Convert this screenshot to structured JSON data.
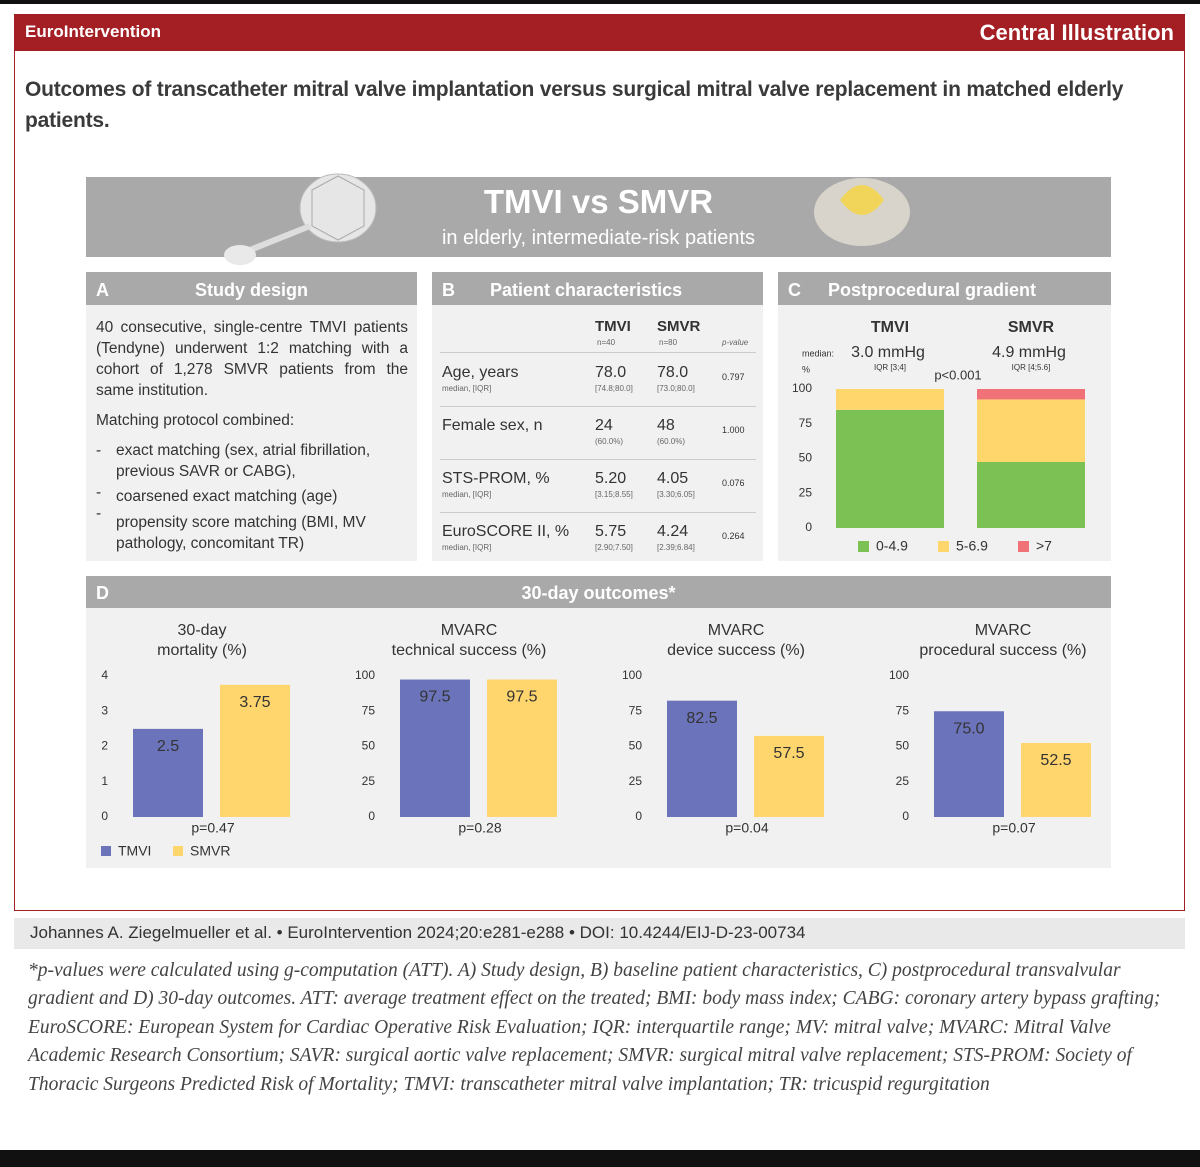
{
  "header": {
    "journal": "EuroIntervention",
    "label": "Central Illustration"
  },
  "title": "Outcomes of transcatheter mitral valve implantation versus surgical mitral valve replacement in matched elderly patients.",
  "banner": {
    "title": "TMVI vs SMVR",
    "subtitle": "in elderly, intermediate-risk patients"
  },
  "panel_a": {
    "letter": "A",
    "title": "Study design",
    "paragraph": "40 consecutive, single-centre TMVI patients (Tendyne) underwent 1:2 matching with a cohort of 1,278 SMVR patients from the same institution.",
    "matching_intro": "Matching protocol combined:",
    "matching_items": [
      "exact matching (sex, atrial fibrillation, previous SAVR or CABG),",
      "coarsened exact matching (age)",
      "propensity score matching (BMI, MV pathology, concomitant TR)"
    ]
  },
  "panel_b": {
    "letter": "B",
    "title": "Patient characteristics",
    "columns": [
      "TMVI",
      "SMVR"
    ],
    "column_n": [
      "n=40",
      "n=80"
    ],
    "p_header": "p-value",
    "rows": [
      {
        "label": "Age, years",
        "sublabel": "median, [IQR]",
        "tmvi": "78.0",
        "tmvi_detail": "[74.8;80.0]",
        "smvr": "78.0",
        "smvr_detail": "[73.0;80.0]",
        "p": "0.797"
      },
      {
        "label": "Female sex, n",
        "tmvi": "24",
        "tmvi_detail": "(60.0%)",
        "smvr": "48",
        "smvr_detail": "(60.0%)",
        "p": "1.000"
      },
      {
        "label": "STS-PROM, %",
        "sublabel": "median, [IQR]",
        "tmvi": "5.20",
        "tmvi_detail": "[3.15;8.55]",
        "smvr": "4.05",
        "smvr_detail": "[3.30;6.05]",
        "p": "0.076"
      },
      {
        "label": "EuroSCORE II, %",
        "sublabel": "median, [IQR]",
        "tmvi": "5.75",
        "tmvi_detail": "[2.90;7.50]",
        "smvr": "4.24",
        "smvr_detail": "[2.39;6.84]",
        "p": "0.264"
      }
    ]
  },
  "panel_c": {
    "letter": "C",
    "title": "Postprocedural gradient",
    "chart": {
      "type": "bar",
      "stacked": true,
      "categories": [
        "TMVI",
        "SMVR"
      ],
      "median_label": "median:",
      "medians": [
        "3.0 mmHg",
        "4.9 mmHg"
      ],
      "iqr": [
        "IQR [3;4]",
        "IQR [4;5.6]"
      ],
      "y_unit": "%",
      "p_value": "p<0.001",
      "series": [
        {
          "name": "0-4.9",
          "color": "#7cc153",
          "values": [
            85,
            47.5
          ]
        },
        {
          "name": "5-6.9",
          "color": "#ffd66b",
          "values": [
            15,
            45
          ]
        },
        {
          "name": ">7",
          "color": "#f07177",
          "values": [
            0,
            7.5
          ]
        }
      ],
      "ylim": [
        0,
        100
      ],
      "yticks": [
        0,
        25,
        50,
        75,
        100
      ]
    }
  },
  "panel_d": {
    "letter": "D",
    "title": "30-day outcomes*",
    "legend": [
      {
        "name": "TMVI",
        "color": "#6b74bb"
      },
      {
        "name": "SMVR",
        "color": "#ffd56e"
      }
    ],
    "charts": [
      {
        "type": "bar",
        "title": [
          "30-day",
          "mortality (%)"
        ],
        "values": [
          2.5,
          3.75
        ],
        "ylim": [
          0,
          4
        ],
        "yticks": [
          0,
          1,
          2,
          3,
          4
        ],
        "p_value": "p=0.47"
      },
      {
        "type": "bar",
        "title": [
          "MVARC",
          "technical success (%)"
        ],
        "values": [
          97.5,
          97.5
        ],
        "ylim": [
          0,
          100
        ],
        "yticks": [
          0,
          25,
          50,
          75,
          100
        ],
        "p_value": "p=0.28"
      },
      {
        "type": "bar",
        "title": [
          "MVARC",
          "device success (%)"
        ],
        "values": [
          82.5,
          57.5
        ],
        "ylim": [
          0,
          100
        ],
        "yticks": [
          0,
          25,
          50,
          75,
          100
        ],
        "p_value": "p=0.04"
      },
      {
        "type": "bar",
        "title": [
          "MVARC",
          "procedural success (%)"
        ],
        "values": [
          75.0,
          52.5
        ],
        "value_labels": [
          "75.0",
          "52.5"
        ],
        "ylim": [
          0,
          100
        ],
        "yticks": [
          0,
          25,
          50,
          75,
          100
        ],
        "p_value": "p=0.07"
      }
    ]
  },
  "citation": "Johannes A. Ziegelmueller et al. • EuroIntervention 2024;20:e281-e288 • DOI: 10.4244/EIJ-D-23-00734",
  "footnote": "*p-values were calculated using g-computation (ATT). A) Study design, B) baseline patient characteristics, C) postprocedural transvalvular gradient and D) 30-day outcomes. ATT: average treatment effect on the treated; BMI: body mass index; CABG: coronary artery bypass grafting; EuroSCORE: European System for Cardiac Operative Risk Evaluation; IQR: interquartile range; MV: mitral valve; MVARC: Mitral Valve Academic Research Consortium; SAVR: surgical aortic valve replacement; SMVR: surgical mitral valve replacement; STS-PROM: Society of Thoracic Surgeons Predicted Risk of Mortality; TMVI: transcatheter mitral valve implantation; TR: tricuspid regurgitation"
}
